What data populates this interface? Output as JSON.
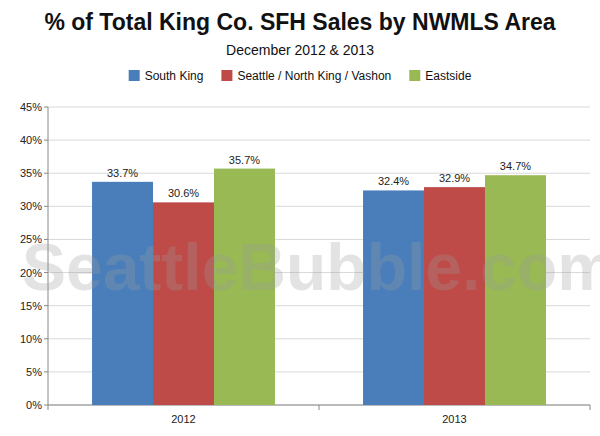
{
  "chart_data": {
    "type": "bar",
    "title": "% of Total King Co. SFH Sales by NWMLS Area",
    "subtitle": "December 2012 & 2013",
    "annotations": [
      "SeattleBubble.com"
    ],
    "categories": [
      "2012",
      "2013"
    ],
    "series": [
      {
        "name": "South King",
        "color": "#4a7ebb",
        "values": [
          33.7,
          32.4
        ],
        "value_labels": [
          "33.7%",
          "32.4%"
        ]
      },
      {
        "name": "Seattle / North King / Vashon",
        "color": "#be4b48",
        "values": [
          30.6,
          32.9
        ],
        "value_labels": [
          "30.6%",
          "32.9%"
        ]
      },
      {
        "name": "Eastside",
        "color": "#98b954",
        "values": [
          35.7,
          34.7
        ],
        "value_labels": [
          "35.7%",
          "34.7%"
        ]
      }
    ],
    "ylim": [
      0,
      45
    ],
    "yticks": [
      {
        "value": 0,
        "label": "0%"
      },
      {
        "value": 5,
        "label": "5%"
      },
      {
        "value": 10,
        "label": "10%"
      },
      {
        "value": 15,
        "label": "15%"
      },
      {
        "value": 20,
        "label": "20%"
      },
      {
        "value": 25,
        "label": "25%"
      },
      {
        "value": 30,
        "label": "30%"
      },
      {
        "value": 35,
        "label": "35%"
      },
      {
        "value": 40,
        "label": "40%"
      },
      {
        "value": 45,
        "label": "45%"
      }
    ],
    "grid": true,
    "legend": "top",
    "data_labels": true
  }
}
